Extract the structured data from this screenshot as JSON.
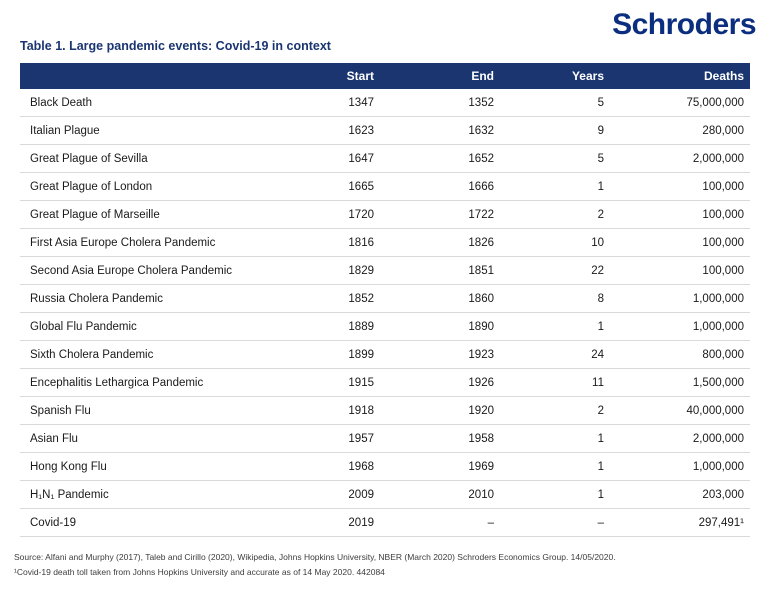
{
  "brand": {
    "name": "Schroders",
    "logo_color": "#0B2E7E"
  },
  "title": "Table 1. Large pandemic events: Covid-19 in context",
  "colors": {
    "header_bar": "#1A3570",
    "header_text": "#FFFFFF",
    "title_text": "#1A3570",
    "body_text": "#1A1A1A",
    "row_divider": "#D9D9D9",
    "footer_text": "#3D3D3D",
    "background": "#FFFFFF"
  },
  "table": {
    "headers": [
      "",
      "Start",
      "End",
      "Years",
      "Deaths"
    ],
    "rows": [
      {
        "name": "Black Death",
        "start": "1347",
        "end": "1352",
        "years": "5",
        "deaths": "75,000,000"
      },
      {
        "name": "Italian Plague",
        "start": "1623",
        "end": "1632",
        "years": "9",
        "deaths": "280,000"
      },
      {
        "name": "Great Plague of Sevilla",
        "start": "1647",
        "end": "1652",
        "years": "5",
        "deaths": "2,000,000"
      },
      {
        "name": "Great Plague of London",
        "start": "1665",
        "end": "1666",
        "years": "1",
        "deaths": "100,000"
      },
      {
        "name": "Great Plague of Marseille",
        "start": "1720",
        "end": "1722",
        "years": "2",
        "deaths": "100,000"
      },
      {
        "name": "First Asia Europe Cholera Pandemic",
        "start": "1816",
        "end": "1826",
        "years": "10",
        "deaths": "100,000"
      },
      {
        "name": "Second Asia Europe Cholera Pandemic",
        "start": "1829",
        "end": "1851",
        "years": "22",
        "deaths": "100,000"
      },
      {
        "name": "Russia Cholera Pandemic",
        "start": "1852",
        "end": "1860",
        "years": "8",
        "deaths": "1,000,000"
      },
      {
        "name": "Global Flu Pandemic",
        "start": "1889",
        "end": "1890",
        "years": "1",
        "deaths": "1,000,000"
      },
      {
        "name": "Sixth Cholera Pandemic",
        "start": "1899",
        "end": "1923",
        "years": "24",
        "deaths": "800,000"
      },
      {
        "name": "Encephalitis Lethargica Pandemic",
        "start": "1915",
        "end": "1926",
        "years": "11",
        "deaths": "1,500,000"
      },
      {
        "name": "Spanish Flu",
        "start": "1918",
        "end": "1920",
        "years": "2",
        "deaths": "40,000,000"
      },
      {
        "name": "Asian Flu",
        "start": "1957",
        "end": "1958",
        "years": "1",
        "deaths": "2,000,000"
      },
      {
        "name": "Hong Kong Flu",
        "start": "1968",
        "end": "1969",
        "years": "1",
        "deaths": "1,000,000"
      },
      {
        "name": "H₁N₁ Pandemic",
        "start": "2009",
        "end": "2010",
        "years": "1",
        "deaths": "203,000"
      },
      {
        "name": "Covid-19",
        "start": "2019",
        "end": "–",
        "years": "–",
        "deaths": "297,491¹"
      }
    ]
  },
  "footer": {
    "source_line": "Source: Alfani and Murphy (2017), Taleb and Cirillo (2020), Wikipedia, Johns Hopkins University, NBER (March 2020) Schroders Economics Group. 14/05/2020.",
    "footnote_line": "¹Covid-19 death toll taken from Johns Hopkins University and accurate as of 14 May 2020. 442084"
  }
}
